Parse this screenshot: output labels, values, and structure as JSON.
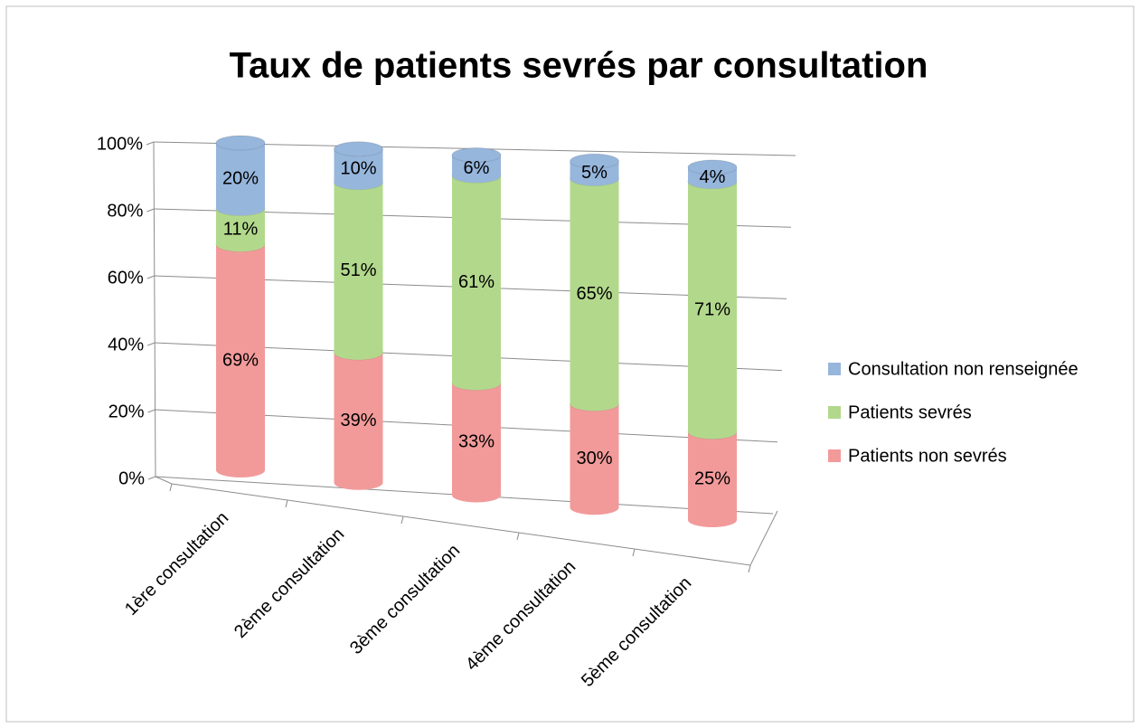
{
  "chart_data": {
    "type": "bar3d_stacked",
    "title": "Taux de patients sevrés par consultation",
    "categories": [
      "1ère consultation",
      "2ème consultation",
      "3ème consultation",
      "4ème consultation",
      "5ème consultation"
    ],
    "series": [
      {
        "name": "Patients non sevrés",
        "color": "#f29a9a",
        "values": [
          69,
          39,
          33,
          30,
          25
        ],
        "value_labels": [
          "69%",
          "39%",
          "33%",
          "30%",
          "25%"
        ]
      },
      {
        "name": "Patients sevrés",
        "color": "#b2d88c",
        "values": [
          11,
          51,
          61,
          65,
          71
        ],
        "value_labels": [
          "11%",
          "51%",
          "61%",
          "65%",
          "71%"
        ]
      },
      {
        "name": "Consultation non renseignée",
        "color": "#96b6dc",
        "values": [
          20,
          10,
          6,
          5,
          4
        ],
        "value_labels": [
          "20%",
          "10%",
          "6%",
          "5%",
          "4%"
        ]
      }
    ],
    "ylim": [
      0,
      100
    ],
    "yticks": [
      {
        "value": 0,
        "label": "0%"
      },
      {
        "value": 20,
        "label": "20%"
      },
      {
        "value": 40,
        "label": "40%"
      },
      {
        "value": 60,
        "label": "60%"
      },
      {
        "value": 80,
        "label": "80%"
      },
      {
        "value": 100,
        "label": "100%"
      }
    ],
    "grid": true,
    "legend": "right"
  }
}
